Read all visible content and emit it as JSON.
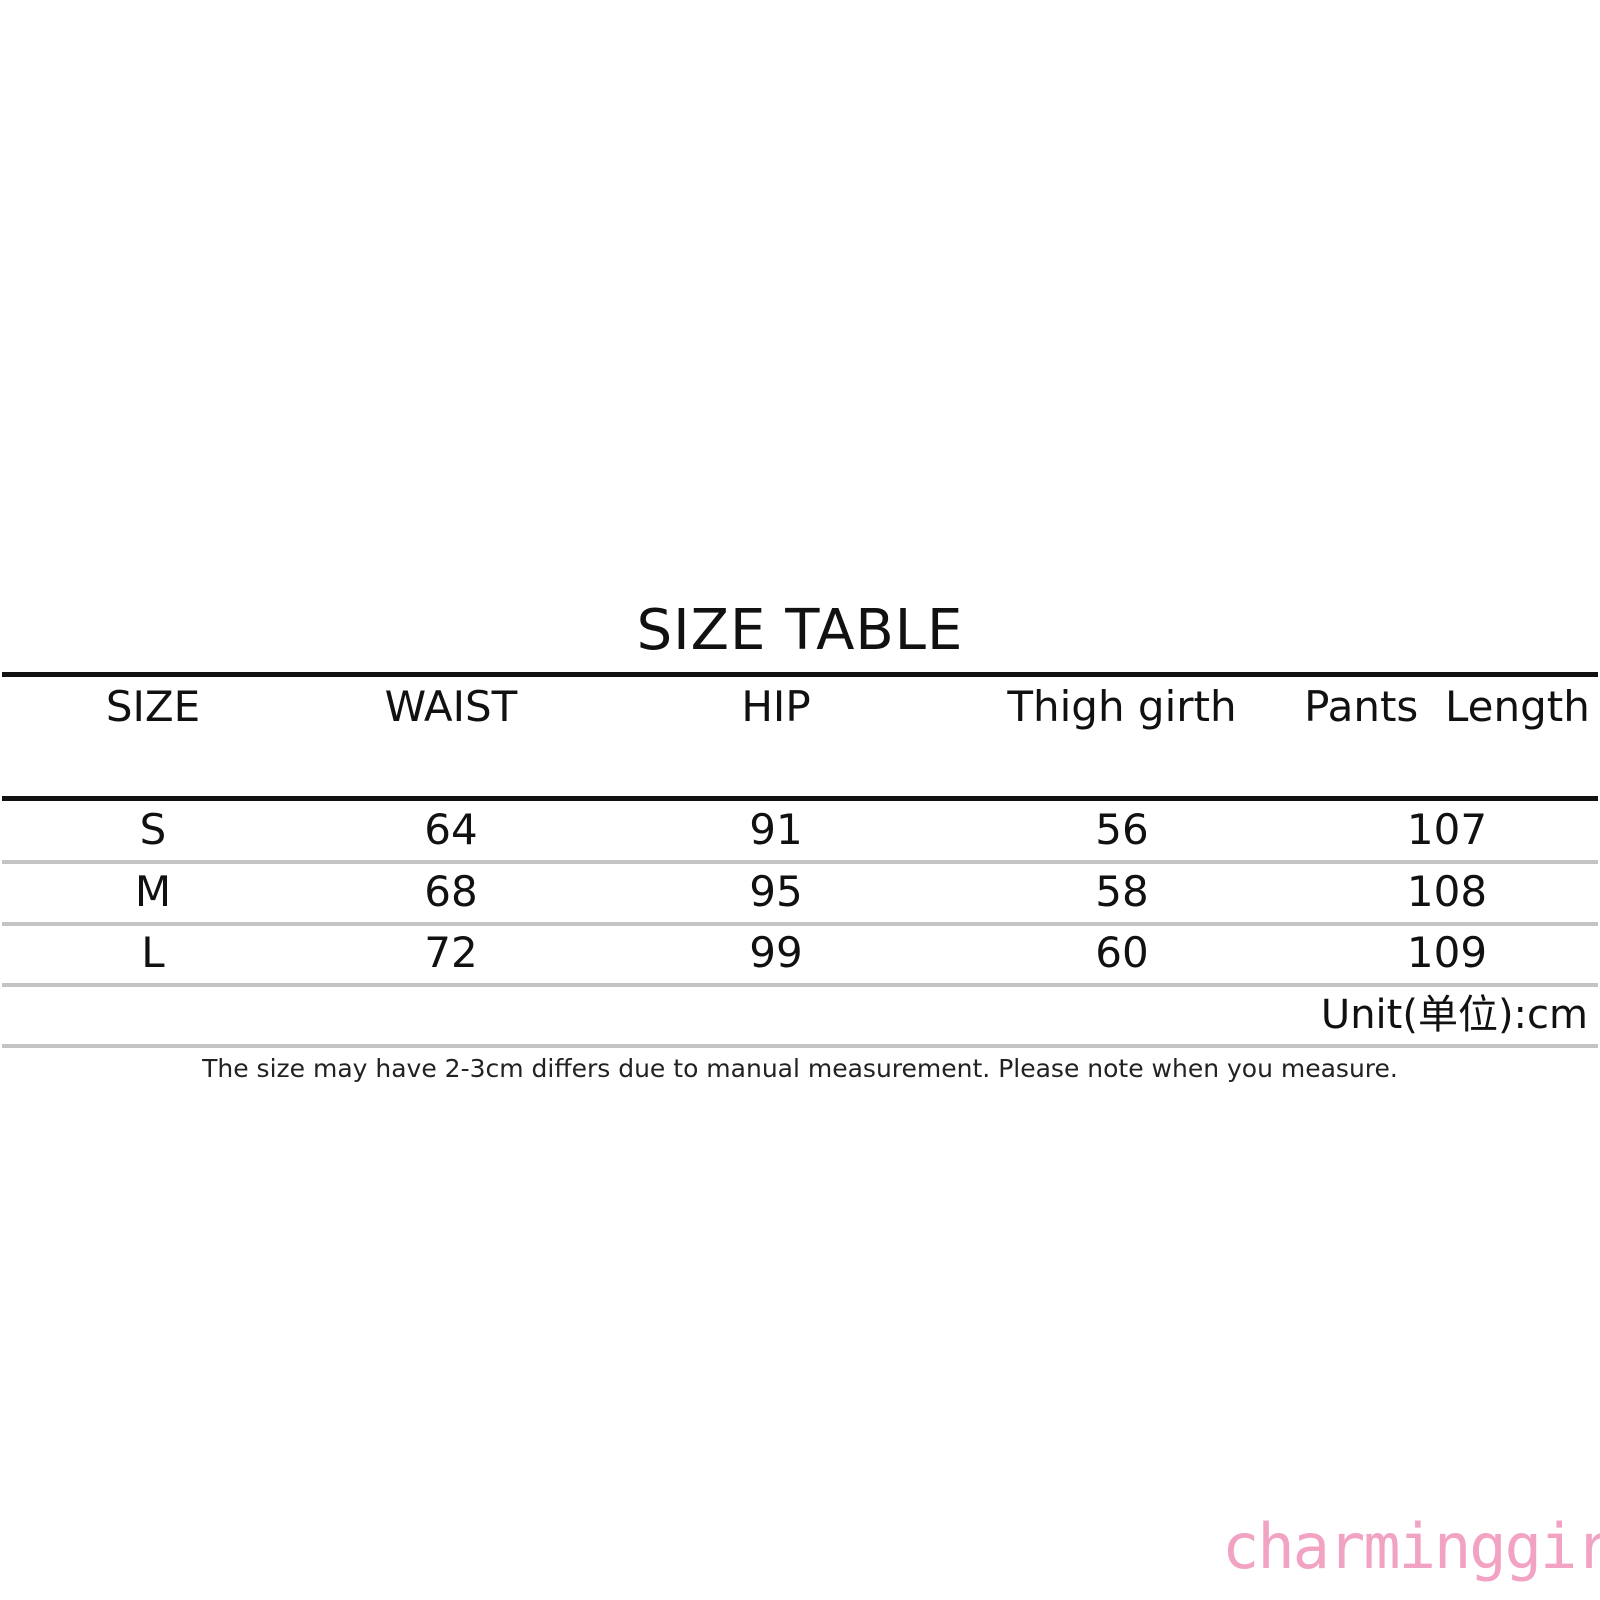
{
  "title": "SIZE TABLE",
  "table": {
    "headers": [
      "SIZE",
      "WAIST",
      "HIP",
      "Thigh girth",
      "Pants  Length"
    ],
    "rows": [
      [
        "S",
        "64",
        "91",
        "56",
        "107"
      ],
      [
        "M",
        "68",
        "95",
        "58",
        "108"
      ],
      [
        "L",
        "72",
        "99",
        "60",
        "109"
      ]
    ]
  },
  "unit": "Unit(单位):cm",
  "note": "The size may have 2-3cm differs due to manual measurement. Please note when you measure.",
  "watermark": "charminggirl",
  "colors": {
    "watermark": "#f2a3c4",
    "rule": "#111111",
    "row_divider": "#c4c4c4"
  }
}
